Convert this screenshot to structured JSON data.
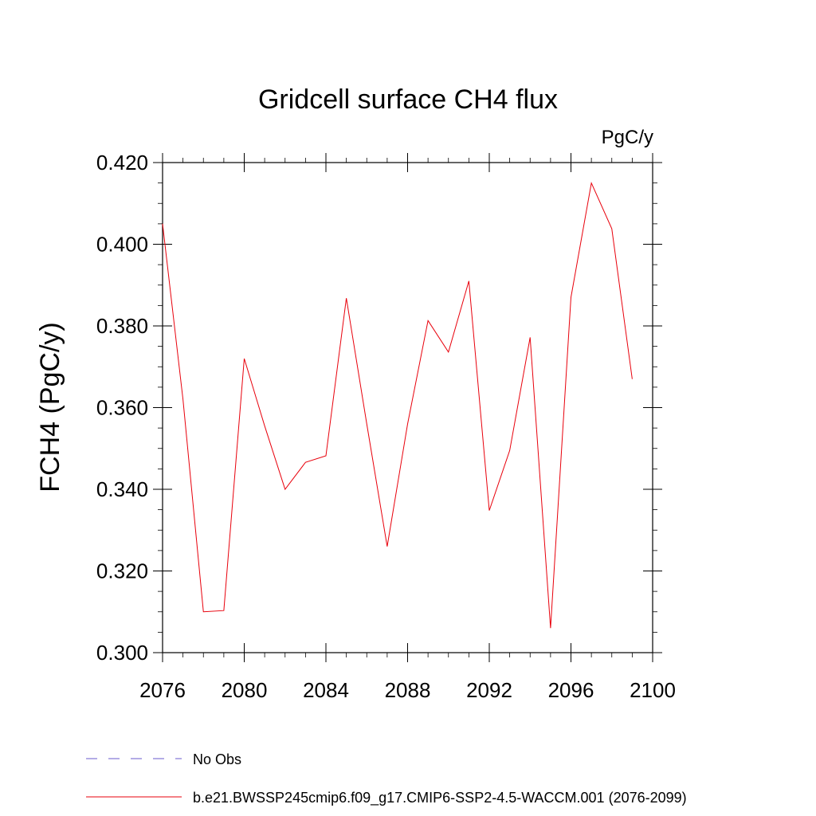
{
  "chart_data": {
    "type": "line",
    "title": "Gridcell surface CH4 flux",
    "units_label": "PgC/y",
    "ylabel": "FCH4  (PgC/y)",
    "xlabel": "",
    "xlim": [
      2076,
      2100
    ],
    "ylim": [
      0.3,
      0.42
    ],
    "x_ticks": [
      2076,
      2080,
      2084,
      2088,
      2092,
      2096,
      2100
    ],
    "x_tick_labels": [
      "2076",
      "2080",
      "2084",
      "2088",
      "2092",
      "2096",
      "2100"
    ],
    "y_ticks": [
      0.3,
      0.32,
      0.34,
      0.36,
      0.38,
      0.4,
      0.42
    ],
    "y_tick_labels": [
      "0.300",
      "0.320",
      "0.340",
      "0.360",
      "0.380",
      "0.400",
      "0.420"
    ],
    "grid": false,
    "legend_position": "bottom",
    "series": [
      {
        "name": "b.e21.BWSSP245cmip6.f09_g17.CMIP6-SSP2-4.5-WACCM.001 (2076-2099)",
        "color": "#e8000b",
        "x": [
          2076,
          2077,
          2078,
          2079,
          2080,
          2081,
          2082,
          2083,
          2084,
          2085,
          2086,
          2087,
          2088,
          2089,
          2090,
          2091,
          2092,
          2093,
          2094,
          2095,
          2096,
          2097,
          2098,
          2099
        ],
        "values": [
          0.405,
          0.362,
          0.31,
          0.3103,
          0.372,
          0.3555,
          0.34,
          0.3466,
          0.3482,
          0.3868,
          0.356,
          0.326,
          0.356,
          0.3813,
          0.3736,
          0.391,
          0.3348,
          0.3495,
          0.3772,
          0.306,
          0.387,
          0.415,
          0.4038,
          0.367
        ]
      }
    ],
    "legend": [
      {
        "label": "No Obs",
        "color": "#6a5acd",
        "style": "dashed"
      },
      {
        "label": "b.e21.BWSSP245cmip6.f09_g17.CMIP6-SSP2-4.5-WACCM.001 (2076-2099)",
        "color": "#e8000b",
        "style": "solid"
      }
    ]
  }
}
